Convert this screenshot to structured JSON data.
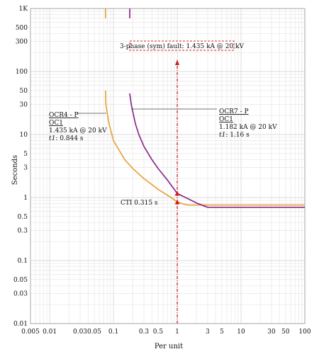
{
  "chart_data": {
    "type": "line",
    "xlabel": "Per unit",
    "ylabel": "Seconds",
    "xscale": "log",
    "yscale": "log",
    "xlim": [
      0.005,
      100
    ],
    "ylim": [
      0.01,
      1000
    ],
    "grid": true,
    "x_ticks": [
      {
        "v": 0.005,
        "label": "0.005"
      },
      {
        "v": 0.01,
        "label": "0.01"
      },
      {
        "v": 0.03,
        "label": "0.03"
      },
      {
        "v": 0.05,
        "label": "0.05"
      },
      {
        "v": 0.1,
        "label": "0.1"
      },
      {
        "v": 0.3,
        "label": "0.3"
      },
      {
        "v": 0.5,
        "label": "0.5"
      },
      {
        "v": 1,
        "label": "1"
      },
      {
        "v": 3,
        "label": "3"
      },
      {
        "v": 5,
        "label": "5"
      },
      {
        "v": 10,
        "label": "10"
      },
      {
        "v": 30,
        "label": "30"
      },
      {
        "v": 50,
        "label": "50"
      },
      {
        "v": 100,
        "label": "100"
      }
    ],
    "y_ticks": [
      {
        "v": 1000,
        "label": "1K"
      },
      {
        "v": 500,
        "label": "500"
      },
      {
        "v": 300,
        "label": "300"
      },
      {
        "v": 100,
        "label": "100"
      },
      {
        "v": 50,
        "label": "50"
      },
      {
        "v": 30,
        "label": "30"
      },
      {
        "v": 10,
        "label": "10"
      },
      {
        "v": 5,
        "label": "5"
      },
      {
        "v": 3,
        "label": "3"
      },
      {
        "v": 1,
        "label": "1"
      },
      {
        "v": 0.5,
        "label": "0.5"
      },
      {
        "v": 0.3,
        "label": "0.3"
      },
      {
        "v": 0.1,
        "label": "0.1"
      },
      {
        "v": 0.05,
        "label": "0.05"
      },
      {
        "v": 0.03,
        "label": "0.03"
      },
      {
        "v": 0.01,
        "label": "0.01"
      }
    ],
    "series": [
      {
        "name": "OCR4 - P OC1",
        "color": "#E8A33D",
        "points": [
          [
            0.075,
            50
          ],
          [
            0.076,
            30
          ],
          [
            0.085,
            15
          ],
          [
            0.1,
            8
          ],
          [
            0.15,
            4
          ],
          [
            0.2,
            2.9
          ],
          [
            0.3,
            2.0
          ],
          [
            0.5,
            1.35
          ],
          [
            0.8,
            1.0
          ],
          [
            1.0,
            0.85
          ],
          [
            1.3,
            0.78
          ],
          [
            1.5,
            0.76
          ],
          [
            100,
            0.76
          ]
        ],
        "stub": [
          [
            0.075,
            700
          ],
          [
            0.075,
            1000
          ]
        ]
      },
      {
        "name": "OCR7 - P OC1",
        "color": "#8B2A8B",
        "points": [
          [
            0.18,
            45
          ],
          [
            0.19,
            30
          ],
          [
            0.22,
            15
          ],
          [
            0.25,
            10
          ],
          [
            0.3,
            6.5
          ],
          [
            0.4,
            4.0
          ],
          [
            0.5,
            2.9
          ],
          [
            0.7,
            1.9
          ],
          [
            1.0,
            1.16
          ],
          [
            1.5,
            0.95
          ],
          [
            2.0,
            0.82
          ],
          [
            3.0,
            0.7
          ],
          [
            100,
            0.7
          ]
        ],
        "stub": [
          [
            0.18,
            700
          ],
          [
            0.18,
            1000
          ]
        ]
      }
    ],
    "fault_line": {
      "x": 1,
      "label": "3-phase (sym) fault: 1.435 kA @ 20 kV",
      "color": "#CC2222"
    },
    "markers": [
      {
        "x": 1,
        "y": 0.844,
        "color": "#CC2222"
      },
      {
        "x": 1,
        "y": 1.16,
        "color": "#CC2222"
      }
    ],
    "annotations": {
      "ocr4": {
        "line1": "OCR4 - P",
        "line2": "OC1",
        "line3": "1.435 kA @ 20 kV",
        "line4_prefix": "t1",
        "line4_rest": ": 0.844 s"
      },
      "ocr7": {
        "line1": "OCR7 - P",
        "line2": "OC1",
        "line3": "1.182 kA @ 20 kV",
        "line4_prefix": "t1",
        "line4_rest": ": 1.16 s"
      },
      "cti": "CTI 0.315 s"
    }
  }
}
